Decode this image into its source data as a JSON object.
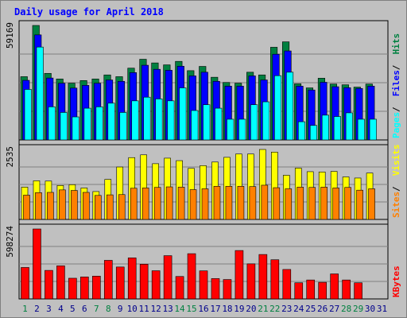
{
  "title": "Daily usage for April 2018",
  "chart_data": [
    {
      "type": "bar",
      "panel": "hits_files_pages",
      "categories": [
        "1",
        "2",
        "3",
        "4",
        "5",
        "6",
        "7",
        "8",
        "9",
        "10",
        "11",
        "12",
        "13",
        "14",
        "15",
        "16",
        "17",
        "18",
        "19",
        "20",
        "21",
        "22",
        "23",
        "24",
        "25",
        "26",
        "27",
        "28",
        "29",
        "30",
        "31"
      ],
      "ymax_label": "59169",
      "ylim": [
        0,
        59169
      ],
      "side_label": [
        "Pages",
        "Files",
        "Hits"
      ],
      "series": [
        {
          "name": "Hits",
          "color": "#008040",
          "values": [
            32700,
            59169,
            34400,
            31500,
            29300,
            30700,
            31500,
            33600,
            32700,
            37100,
            41700,
            39800,
            38800,
            40600,
            35800,
            38000,
            32400,
            29700,
            29300,
            35000,
            33600,
            47900,
            50700,
            29000,
            26900,
            31900,
            28900,
            28500,
            27300,
            28900,
            0
          ]
        },
        {
          "name": "Files",
          "color": "#0000ff",
          "values": [
            30800,
            54300,
            32000,
            29300,
            26800,
            28200,
            29300,
            31000,
            30300,
            34800,
            38600,
            36500,
            36000,
            38100,
            33100,
            35000,
            30300,
            27800,
            27800,
            33100,
            31000,
            44300,
            46000,
            27800,
            25800,
            29800,
            27500,
            27000,
            26600,
            27800,
            0
          ]
        },
        {
          "name": "Pages",
          "color": "#00ffff",
          "values": [
            26100,
            48000,
            17100,
            14200,
            11900,
            16400,
            17100,
            19000,
            14200,
            20200,
            22100,
            21200,
            20200,
            26900,
            15200,
            18200,
            16400,
            10700,
            10700,
            18200,
            19700,
            33200,
            35000,
            9400,
            7500,
            12800,
            12100,
            14000,
            10700,
            10700,
            0
          ]
        }
      ]
    },
    {
      "type": "bar",
      "panel": "visits_sites",
      "categories": [
        "1",
        "2",
        "3",
        "4",
        "5",
        "6",
        "7",
        "8",
        "9",
        "10",
        "11",
        "12",
        "13",
        "14",
        "15",
        "16",
        "17",
        "18",
        "19",
        "20",
        "21",
        "22",
        "23",
        "24",
        "25",
        "26",
        "27",
        "28",
        "29",
        "30",
        "31"
      ],
      "ymax_label": "2535",
      "ylim": [
        0,
        2535
      ],
      "side_label": [
        "Sites",
        "Visits"
      ],
      "series": [
        {
          "name": "Visits",
          "color": "#ffff00",
          "values": [
            1170,
            1400,
            1390,
            1230,
            1260,
            1140,
            1010,
            1450,
            1900,
            2240,
            2340,
            2020,
            2220,
            2130,
            1850,
            1950,
            2080,
            2250,
            2370,
            2370,
            2535,
            2440,
            1600,
            1860,
            1730,
            1720,
            1740,
            1540,
            1500,
            1680,
            0
          ]
        },
        {
          "name": "Sites",
          "color": "#ff8000",
          "values": [
            880,
            970,
            980,
            1070,
            1050,
            980,
            870,
            890,
            900,
            1130,
            1140,
            1160,
            1180,
            1170,
            1080,
            1110,
            1200,
            1200,
            1200,
            1190,
            1240,
            1150,
            1110,
            1170,
            1160,
            1170,
            1140,
            1160,
            1060,
            1110,
            0
          ]
        }
      ]
    },
    {
      "type": "bar",
      "panel": "kbytes",
      "categories": [
        "1",
        "2",
        "3",
        "4",
        "5",
        "6",
        "7",
        "8",
        "9",
        "10",
        "11",
        "12",
        "13",
        "14",
        "15",
        "16",
        "17",
        "18",
        "19",
        "20",
        "21",
        "22",
        "23",
        "24",
        "25",
        "26",
        "27",
        "28",
        "29",
        "30",
        "31"
      ],
      "ymax_label": "598274",
      "ylim": [
        0,
        598274
      ],
      "side_label": [
        "KBytes"
      ],
      "series": [
        {
          "name": "KBytes",
          "color": "#ff0000",
          "values": [
            269000,
            598274,
            244000,
            283000,
            177000,
            188000,
            195000,
            330000,
            273000,
            351000,
            297000,
            241000,
            370000,
            192000,
            387000,
            240000,
            174000,
            166000,
            414000,
            300000,
            380000,
            335000,
            252000,
            138000,
            162000,
            142000,
            214000,
            162000,
            138000,
            0,
            0
          ]
        }
      ]
    }
  ],
  "day_labels": [
    {
      "text": "1",
      "color": "#008040"
    },
    {
      "text": "2",
      "color": "#00008b"
    },
    {
      "text": "3",
      "color": "#00008b"
    },
    {
      "text": "4",
      "color": "#00008b"
    },
    {
      "text": "5",
      "color": "#00008b"
    },
    {
      "text": "6",
      "color": "#00008b"
    },
    {
      "text": "7",
      "color": "#008040"
    },
    {
      "text": "8",
      "color": "#008040"
    },
    {
      "text": "9",
      "color": "#00008b"
    },
    {
      "text": "10",
      "color": "#00008b"
    },
    {
      "text": "11",
      "color": "#00008b"
    },
    {
      "text": "12",
      "color": "#00008b"
    },
    {
      "text": "13",
      "color": "#00008b"
    },
    {
      "text": "14",
      "color": "#008040"
    },
    {
      "text": "15",
      "color": "#008040"
    },
    {
      "text": "16",
      "color": "#00008b"
    },
    {
      "text": "17",
      "color": "#00008b"
    },
    {
      "text": "18",
      "color": "#00008b"
    },
    {
      "text": "19",
      "color": "#00008b"
    },
    {
      "text": "20",
      "color": "#00008b"
    },
    {
      "text": "21",
      "color": "#008040"
    },
    {
      "text": "22",
      "color": "#008040"
    },
    {
      "text": "23",
      "color": "#00008b"
    },
    {
      "text": "24",
      "color": "#00008b"
    },
    {
      "text": "25",
      "color": "#00008b"
    },
    {
      "text": "26",
      "color": "#00008b"
    },
    {
      "text": "27",
      "color": "#00008b"
    },
    {
      "text": "28",
      "color": "#008040"
    },
    {
      "text": "29",
      "color": "#008040"
    },
    {
      "text": "30",
      "color": "#00008b"
    },
    {
      "text": "31",
      "color": "#00008b"
    }
  ],
  "colors": {
    "title": "#0000ff",
    "panel_bg": "#c0c0c0",
    "grid": "#808080",
    "separator": "#000000"
  }
}
